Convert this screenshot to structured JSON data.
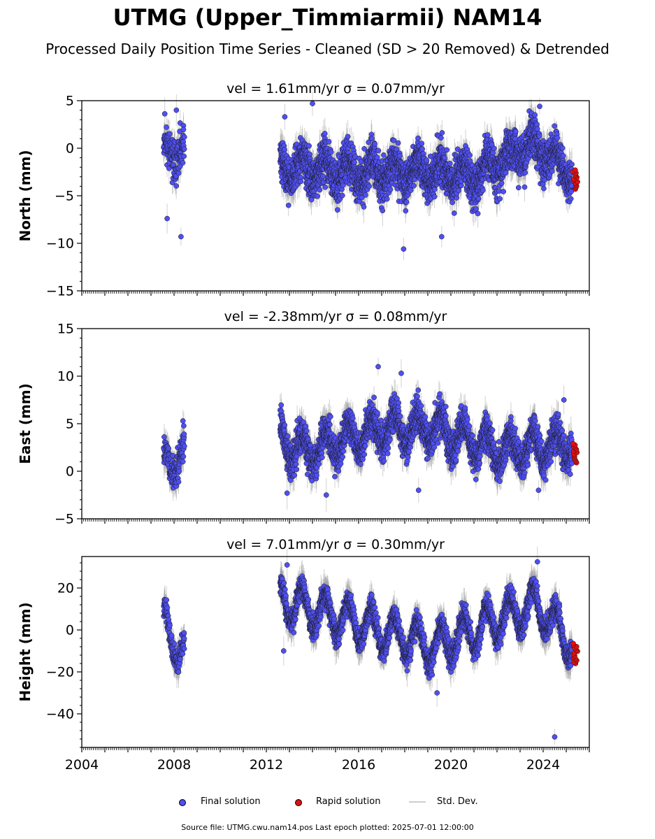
{
  "title": "UTMG (Upper_Timmiarmii) NAM14",
  "subtitle": "Processed Daily Position Time Series - Cleaned (SD > 20 Removed) & Detrended",
  "source_note": "Source file: UTMG.cwu.nam14.pos  Last epoch plotted: 2025-07-01 12:00:00",
  "legend": {
    "final": "Final solution",
    "rapid": "Rapid solution",
    "std": "Std. Dev."
  },
  "colors": {
    "final": "#4f4ff2",
    "rapid": "#e20f0f",
    "std": "#9a9a9a",
    "marker_edge": "#1a1a1a"
  },
  "chart_data": [
    {
      "type": "scatter",
      "title": "vel = 1.61mm/yr   σ = 0.07mm/yr",
      "ylabel": "North (mm)",
      "xlim": [
        2004.0,
        2026.0
      ],
      "ylim": [
        -15,
        5
      ],
      "yticks": [
        -15,
        -10,
        -5,
        0,
        5
      ],
      "ytick_labels": [
        "−15",
        "−10",
        "−5",
        "0",
        "5"
      ],
      "xticks": [
        2004,
        2008,
        2012,
        2016,
        2020,
        2024
      ],
      "seed": 11,
      "segments": [
        [
          2007.55,
          2008.45
        ],
        [
          2012.6,
          2025.25
        ]
      ],
      "final_points": [
        {
          "x": 2007.7,
          "y": -7.4
        },
        {
          "x": 2008.3,
          "y": -9.3
        },
        {
          "x": 2008.1,
          "y": 4.0
        },
        {
          "x": 2014.0,
          "y": 4.7
        },
        {
          "x": 2017.95,
          "y": -10.6
        },
        {
          "x": 2019.6,
          "y": -9.3
        },
        {
          "x": 2023.85,
          "y": 4.4
        },
        {
          "x": 2012.8,
          "y": 3.3
        }
      ],
      "trend": [
        {
          "x": 2007.6,
          "y": 0.0
        },
        {
          "x": 2008.4,
          "y": -0.5
        },
        {
          "x": 2012.6,
          "y": -2.0
        },
        {
          "x": 2016.0,
          "y": -2.5
        },
        {
          "x": 2019.0,
          "y": -2.5
        },
        {
          "x": 2021.0,
          "y": -3.0
        },
        {
          "x": 2023.5,
          "y": 0.5
        },
        {
          "x": 2025.2,
          "y": -2.5
        }
      ],
      "amplitude": 1.2,
      "noise": 1.6,
      "rapid": {
        "x_range": [
          2025.28,
          2025.5
        ],
        "y_range": [
          -4.3,
          -2.3
        ]
      }
    },
    {
      "type": "scatter",
      "title": "vel = -2.38mm/yr   σ = 0.08mm/yr",
      "ylabel": "East (mm)",
      "xlim": [
        2004.0,
        2026.0
      ],
      "ylim": [
        -5,
        15
      ],
      "yticks": [
        -5,
        0,
        5,
        10,
        15
      ],
      "ytick_labels": [
        "−5",
        "0",
        "5",
        "10",
        "15"
      ],
      "xticks": [
        2004,
        2008,
        2012,
        2016,
        2020,
        2024
      ],
      "seed": 23,
      "segments": [
        [
          2007.55,
          2008.45
        ],
        [
          2012.6,
          2025.25
        ]
      ],
      "final_points": [
        {
          "x": 2016.85,
          "y": 11.0
        },
        {
          "x": 2017.85,
          "y": 10.3
        },
        {
          "x": 2024.9,
          "y": 7.5
        },
        {
          "x": 2018.6,
          "y": -2.0
        },
        {
          "x": 2023.8,
          "y": -2.0
        },
        {
          "x": 2014.6,
          "y": -2.5
        },
        {
          "x": 2012.9,
          "y": -2.3
        }
      ],
      "trend": [
        {
          "x": 2007.6,
          "y": 0.6
        },
        {
          "x": 2008.4,
          "y": 2.0
        },
        {
          "x": 2012.6,
          "y": 3.5
        },
        {
          "x": 2013.5,
          "y": 2.0
        },
        {
          "x": 2017.0,
          "y": 4.5
        },
        {
          "x": 2019.5,
          "y": 4.5
        },
        {
          "x": 2022.0,
          "y": 2.0
        },
        {
          "x": 2025.2,
          "y": 3.0
        }
      ],
      "amplitude": 1.6,
      "noise": 1.3,
      "rapid": {
        "x_range": [
          2025.28,
          2025.5
        ],
        "y_range": [
          0.9,
          2.9
        ]
      }
    },
    {
      "type": "scatter",
      "title": "vel = 7.01mm/yr   σ = 0.30mm/yr",
      "ylabel": "Height (mm)",
      "xlim": [
        2004.0,
        2026.0
      ],
      "ylim": [
        -56,
        35
      ],
      "yticks": [
        -40,
        -20,
        0,
        20
      ],
      "ytick_labels": [
        "−40",
        "−20",
        "0",
        "20"
      ],
      "xticks": [
        2004,
        2008,
        2012,
        2016,
        2020,
        2024
      ],
      "xtick_labels": [
        "2004",
        "2008",
        "2012",
        "2016",
        "2020",
        "2024"
      ],
      "seed": 37,
      "segments": [
        [
          2007.55,
          2008.45
        ],
        [
          2012.6,
          2025.25
        ]
      ],
      "final_points": [
        {
          "x": 2024.5,
          "y": -51.0
        },
        {
          "x": 2023.75,
          "y": 32.5
        },
        {
          "x": 2012.9,
          "y": 31.0
        },
        {
          "x": 2012.75,
          "y": -10.0
        },
        {
          "x": 2019.4,
          "y": -30.0
        }
      ],
      "trend": [
        {
          "x": 2007.6,
          "y": 3.0
        },
        {
          "x": 2008.4,
          "y": -12.0
        },
        {
          "x": 2012.6,
          "y": 15.0
        },
        {
          "x": 2016.0,
          "y": 3.0
        },
        {
          "x": 2019.3,
          "y": -8.0
        },
        {
          "x": 2021.0,
          "y": 0.0
        },
        {
          "x": 2023.7,
          "y": 12.0
        },
        {
          "x": 2025.2,
          "y": -6.0
        }
      ],
      "amplitude": 9.0,
      "noise": 4.0,
      "rapid": {
        "x_range": [
          2025.28,
          2025.5
        ],
        "y_range": [
          -16.0,
          -6.5
        ]
      }
    }
  ]
}
